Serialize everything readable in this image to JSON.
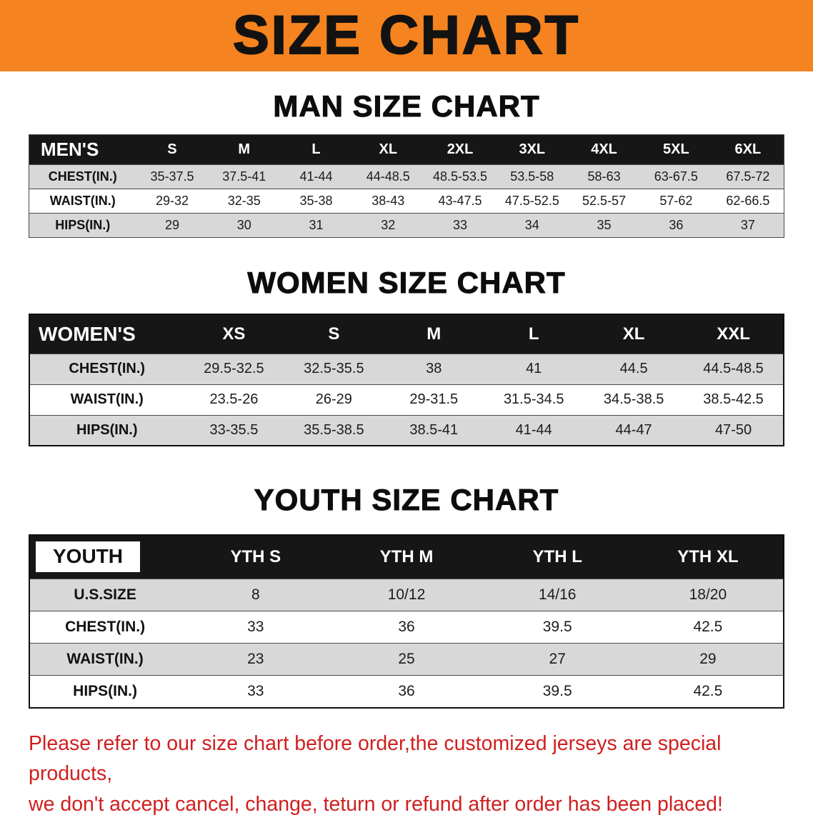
{
  "banner": {
    "title": "SIZE CHART"
  },
  "sections": [
    {
      "id": "men",
      "heading": "MAN SIZE CHART",
      "header_chip": false,
      "table": {
        "header": [
          "MEN'S",
          "S",
          "M",
          "L",
          "XL",
          "2XL",
          "3XL",
          "4XL",
          "5XL",
          "6XL"
        ],
        "rows": [
          [
            "CHEST(IN.)",
            "35-37.5",
            "37.5-41",
            "41-44",
            "44-48.5",
            "48.5-53.5",
            "53.5-58",
            "58-63",
            "63-67.5",
            "67.5-72"
          ],
          [
            "WAIST(IN.)",
            "29-32",
            "32-35",
            "35-38",
            "38-43",
            "43-47.5",
            "47.5-52.5",
            "52.5-57",
            "57-62",
            "62-66.5"
          ],
          [
            "HIPS(IN.)",
            "29",
            "30",
            "31",
            "32",
            "33",
            "34",
            "35",
            "36",
            "37"
          ]
        ]
      }
    },
    {
      "id": "women",
      "heading": "WOMEN SIZE CHART",
      "header_chip": false,
      "table": {
        "header": [
          "WOMEN'S",
          "XS",
          "S",
          "M",
          "L",
          "XL",
          "XXL"
        ],
        "rows": [
          [
            "CHEST(IN.)",
            "29.5-32.5",
            "32.5-35.5",
            "38",
            "41",
            "44.5",
            "44.5-48.5"
          ],
          [
            "WAIST(IN.)",
            "23.5-26",
            "26-29",
            "29-31.5",
            "31.5-34.5",
            "34.5-38.5",
            "38.5-42.5"
          ],
          [
            "HIPS(IN.)",
            "33-35.5",
            "35.5-38.5",
            "38.5-41",
            "41-44",
            "44-47",
            "47-50"
          ]
        ]
      }
    },
    {
      "id": "youth",
      "heading": "YOUTH SIZE CHART",
      "header_chip": true,
      "table": {
        "header": [
          "YOUTH",
          "YTH S",
          "YTH M",
          "YTH L",
          "YTH XL"
        ],
        "rows": [
          [
            "U.S.SIZE",
            "8",
            "10/12",
            "14/16",
            "18/20"
          ],
          [
            "CHEST(IN.)",
            "33",
            "36",
            "39.5",
            "42.5"
          ],
          [
            "WAIST(IN.)",
            "23",
            "25",
            "27",
            "29"
          ],
          [
            "HIPS(IN.)",
            "33",
            "36",
            "39.5",
            "42.5"
          ]
        ]
      }
    }
  ],
  "footer": {
    "line1": "Please refer to our size chart before order,the customized jerseys are special products,",
    "line2": "we don't accept cancel, change, teturn or refund after order has been placed!"
  },
  "colors": {
    "banner_bg": "#f5831f",
    "header_bg": "#161616",
    "stripe_bg": "#d8d8d8",
    "footer_text": "#d01f1f"
  }
}
